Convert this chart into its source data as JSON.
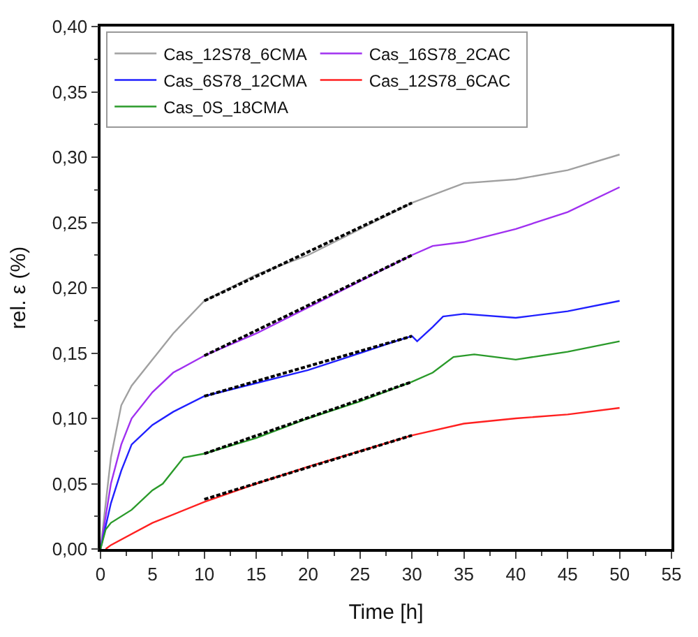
{
  "chart_data": {
    "type": "line",
    "xlabel": "Time [h]",
    "ylabel": "rel. ε (%)",
    "xlim": [
      0,
      55
    ],
    "ylim": [
      0,
      0.4
    ],
    "xticks": [
      0,
      5,
      10,
      15,
      20,
      25,
      30,
      35,
      40,
      45,
      50,
      55,
      {
        "value": 2.5,
        "label": null
      },
      {
        "value": 7.5,
        "label": null
      },
      {
        "value": 12.5,
        "label": null
      },
      {
        "value": 17.5,
        "label": null
      },
      {
        "value": 22.5,
        "label": null
      },
      {
        "value": 27.5,
        "label": null
      },
      {
        "value": 32.5,
        "label": null
      },
      {
        "value": 37.5,
        "label": null
      },
      {
        "value": 42.5,
        "label": null
      },
      {
        "value": 47.5,
        "label": null
      },
      {
        "value": 52.5,
        "label": null
      }
    ],
    "yticks": [
      {
        "value": 0,
        "label": "0,00"
      },
      {
        "value": 0.05,
        "label": "0,05"
      },
      {
        "value": 0.1,
        "label": "0,10"
      },
      {
        "value": 0.15,
        "label": "0,15"
      },
      {
        "value": 0.2,
        "label": "0,20"
      },
      {
        "value": 0.25,
        "label": "0,25"
      },
      {
        "value": 0.3,
        "label": "0,30"
      },
      {
        "value": 0.35,
        "label": "0,35"
      },
      {
        "value": 0.4,
        "label": "0,40"
      },
      {
        "value": 0.025,
        "label": null
      },
      {
        "value": 0.075,
        "label": null
      },
      {
        "value": 0.125,
        "label": null
      },
      {
        "value": 0.175,
        "label": null
      },
      {
        "value": 0.225,
        "label": null
      },
      {
        "value": 0.275,
        "label": null
      },
      {
        "value": 0.325,
        "label": null
      },
      {
        "value": 0.375,
        "label": null
      }
    ],
    "grid": false,
    "legend": "top left",
    "marker": "none",
    "line_style": "solid",
    "series": [
      {
        "name": "Cas_12S78_6CMA",
        "color": "#a0a0a0",
        "x": [
          0,
          1,
          2,
          3,
          5,
          7,
          10,
          15,
          20,
          25,
          30,
          35,
          40,
          45,
          50
        ],
        "values": [
          0,
          0.07,
          0.11,
          0.125,
          0.145,
          0.165,
          0.19,
          0.21,
          0.225,
          0.245,
          0.265,
          0.28,
          0.283,
          0.29,
          0.302
        ]
      },
      {
        "name": "Cas_16S78_2CAC",
        "color": "#a030f0",
        "x": [
          0,
          1,
          2,
          3,
          5,
          7,
          10,
          15,
          20,
          25,
          30,
          32,
          35,
          40,
          45,
          50
        ],
        "values": [
          0,
          0.05,
          0.08,
          0.1,
          0.12,
          0.135,
          0.148,
          0.165,
          0.185,
          0.205,
          0.225,
          0.232,
          0.235,
          0.245,
          0.258,
          0.277
        ]
      },
      {
        "name": "Cas_6S78_12CMA",
        "color": "#2020ff",
        "x": [
          0,
          1,
          2,
          3,
          5,
          7,
          10,
          15,
          20,
          25,
          28,
          30,
          30.5,
          32,
          33,
          35,
          40,
          45,
          50
        ],
        "values": [
          0,
          0.035,
          0.06,
          0.08,
          0.095,
          0.105,
          0.117,
          0.127,
          0.137,
          0.15,
          0.158,
          0.163,
          0.159,
          0.17,
          0.178,
          0.18,
          0.177,
          0.182,
          0.19
        ]
      },
      {
        "name": "Cas_12S78_6CAC",
        "color": "#ff2020",
        "x": [
          0.5,
          1,
          5,
          10,
          15,
          20,
          25,
          30,
          35,
          40,
          45,
          50
        ],
        "values": [
          0,
          0.003,
          0.02,
          0.036,
          0.05,
          0.063,
          0.075,
          0.087,
          0.096,
          0.1,
          0.103,
          0.108
        ]
      },
      {
        "name": "Cas_0S_18CMA",
        "color": "#2a9a2a",
        "x": [
          0,
          0.5,
          1,
          3,
          5,
          6,
          7,
          8,
          10,
          15,
          20,
          25,
          30,
          32,
          34,
          36,
          40,
          45,
          50
        ],
        "values": [
          0,
          0.015,
          0.02,
          0.03,
          0.045,
          0.05,
          0.06,
          0.07,
          0.073,
          0.085,
          0.1,
          0.113,
          0.128,
          0.135,
          0.147,
          0.149,
          0.145,
          0.151,
          0.159
        ]
      },
      {
        "color": "#000000",
        "line_style": "dashed",
        "x": [
          10,
          30
        ],
        "values": [
          0.19,
          0.265
        ]
      },
      {
        "color": "#000000",
        "line_style": "dashed",
        "x": [
          10,
          30
        ],
        "values": [
          0.148,
          0.225
        ]
      },
      {
        "color": "#000000",
        "line_style": "dashed",
        "x": [
          10,
          30
        ],
        "values": [
          0.117,
          0.163
        ]
      },
      {
        "color": "#000000",
        "line_style": "dashed",
        "x": [
          10,
          30
        ],
        "values": [
          0.038,
          0.087
        ]
      },
      {
        "color": "#000000",
        "line_style": "dashed",
        "x": [
          10,
          30
        ],
        "values": [
          0.073,
          0.128
        ]
      }
    ]
  }
}
